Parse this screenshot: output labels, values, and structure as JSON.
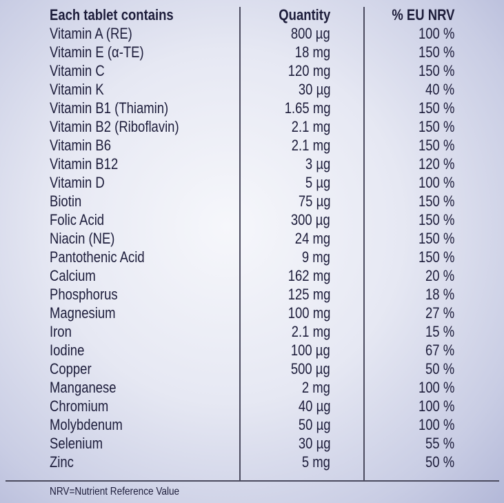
{
  "header": {
    "name": "Each tablet contains",
    "quantity": "Quantity",
    "nrv": "% EU NRV"
  },
  "rows": [
    {
      "name": "Vitamin A (RE)",
      "quantity": "800 µg",
      "nrv": "100 %"
    },
    {
      "name": "Vitamin E (α-TE)",
      "quantity": "18 mg",
      "nrv": "150 %"
    },
    {
      "name": "Vitamin C",
      "quantity": "120 mg",
      "nrv": "150 %"
    },
    {
      "name": "Vitamin K",
      "quantity": "30 µg",
      "nrv": "40 %"
    },
    {
      "name": "Vitamin B1 (Thiamin)",
      "quantity": "1.65 mg",
      "nrv": "150 %"
    },
    {
      "name": "Vitamin B2 (Riboflavin)",
      "quantity": "2.1 mg",
      "nrv": "150 %"
    },
    {
      "name": "Vitamin B6",
      "quantity": "2.1 mg",
      "nrv": "150 %"
    },
    {
      "name": "Vitamin B12",
      "quantity": "3 µg",
      "nrv": "120 %"
    },
    {
      "name": "Vitamin D",
      "quantity": "5 µg",
      "nrv": "100 %"
    },
    {
      "name": "Biotin",
      "quantity": "75 µg",
      "nrv": "150 %"
    },
    {
      "name": "Folic Acid",
      "quantity": "300 µg",
      "nrv": "150 %"
    },
    {
      "name": "Niacin (NE)",
      "quantity": "24 mg",
      "nrv": "150 %"
    },
    {
      "name": "Pantothenic Acid",
      "quantity": "9 mg",
      "nrv": "150 %"
    },
    {
      "name": "Calcium",
      "quantity": "162 mg",
      "nrv": "20 %"
    },
    {
      "name": "Phosphorus",
      "quantity": "125 mg",
      "nrv": "18 %"
    },
    {
      "name": "Magnesium",
      "quantity": "100 mg",
      "nrv": "27 %"
    },
    {
      "name": "Iron",
      "quantity": "2.1 mg",
      "nrv": "15 %"
    },
    {
      "name": "Iodine",
      "quantity": "100 µg",
      "nrv": "67 %"
    },
    {
      "name": "Copper",
      "quantity": "500 µg",
      "nrv": "50 %"
    },
    {
      "name": "Manganese",
      "quantity": "2 mg",
      "nrv": "100 %"
    },
    {
      "name": "Chromium",
      "quantity": "40 µg",
      "nrv": "100 %"
    },
    {
      "name": "Molybdenum",
      "quantity": "50 µg",
      "nrv": "100 %"
    },
    {
      "name": "Selenium",
      "quantity": "30 µg",
      "nrv": "55 %"
    },
    {
      "name": "Zinc",
      "quantity": "5 mg",
      "nrv": "50 %"
    }
  ],
  "footnote": "NRV=Nutrient Reference Value"
}
